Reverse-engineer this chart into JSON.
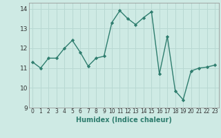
{
  "x": [
    0,
    1,
    2,
    3,
    4,
    5,
    6,
    7,
    8,
    9,
    10,
    11,
    12,
    13,
    14,
    15,
    16,
    17,
    18,
    19,
    20,
    21,
    22,
    23
  ],
  "y": [
    11.3,
    11.0,
    11.5,
    11.5,
    12.0,
    12.4,
    11.8,
    11.1,
    11.5,
    11.6,
    13.3,
    13.9,
    13.5,
    13.2,
    13.55,
    13.85,
    10.7,
    12.6,
    9.85,
    9.4,
    10.85,
    11.0,
    11.05,
    11.15
  ],
  "xlabel": "Humidex (Indice chaleur)",
  "ylim": [
    9,
    14.3
  ],
  "xlim": [
    -0.5,
    23.5
  ],
  "yticks": [
    9,
    10,
    11,
    12,
    13,
    14
  ],
  "xticks": [
    0,
    1,
    2,
    3,
    4,
    5,
    6,
    7,
    8,
    9,
    10,
    11,
    12,
    13,
    14,
    15,
    16,
    17,
    18,
    19,
    20,
    21,
    22,
    23
  ],
  "line_color": "#2e7d6e",
  "bg_color": "#ceeae4",
  "grid_color": "#b8d8d2",
  "marker": "D",
  "marker_size": 2.2,
  "line_width": 1.0,
  "xlabel_fontsize": 7,
  "tick_fontsize": 5.5,
  "ytick_fontsize": 6.5
}
